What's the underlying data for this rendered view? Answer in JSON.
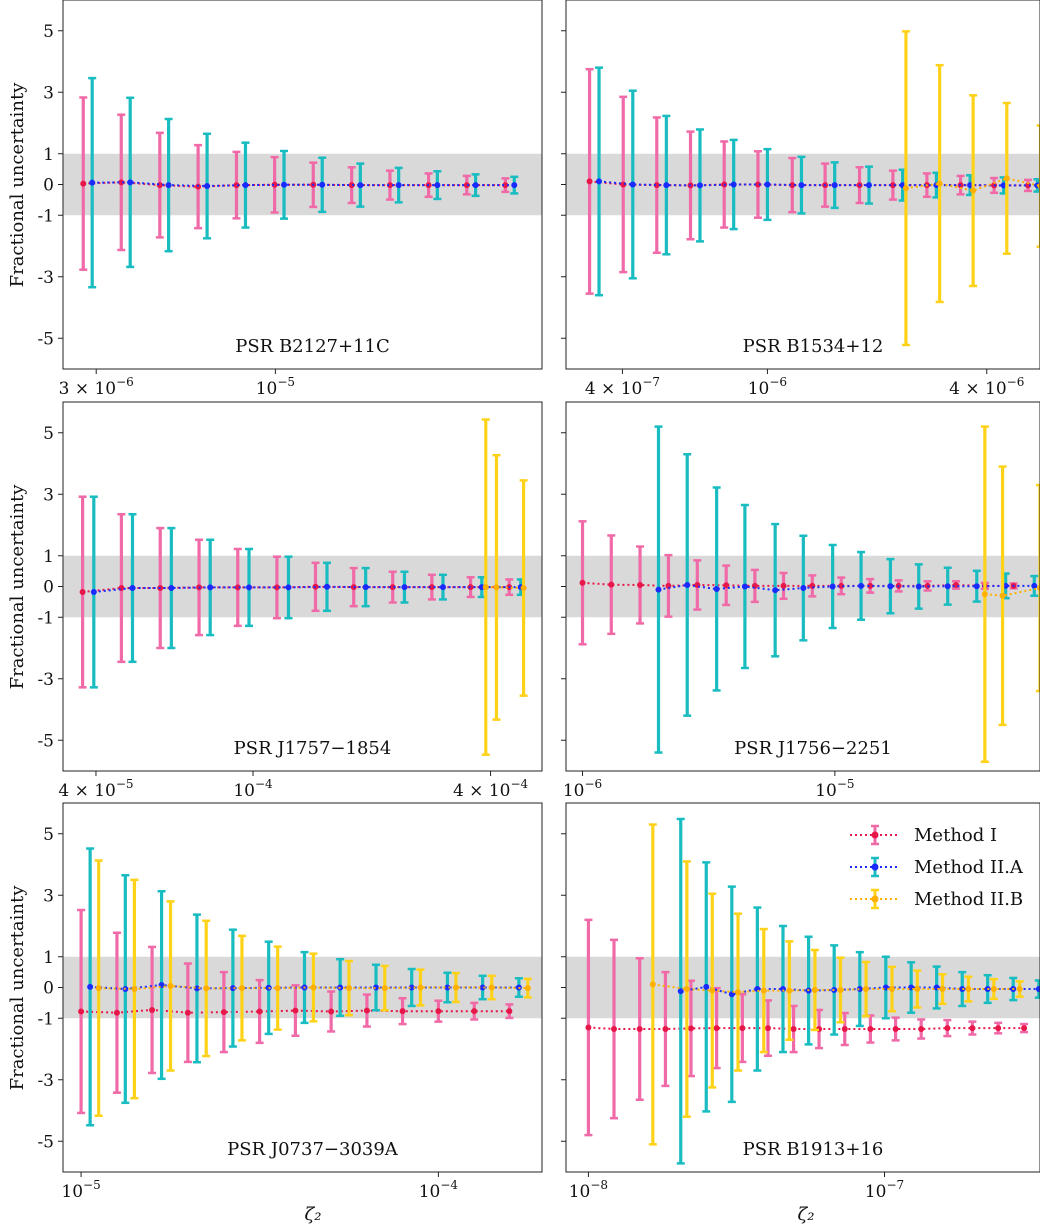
{
  "figure": {
    "ylabel": "Fractional uncertainty",
    "xlabel": "ζ₂",
    "band": [
      -1,
      1
    ],
    "ylim": [
      -6,
      6
    ],
    "y_ticks": [
      5,
      3,
      1,
      0,
      -1,
      -3,
      -5
    ],
    "y_tick_labels": [
      "5",
      "3",
      "1",
      "0",
      "-1",
      "-3",
      "-5"
    ],
    "colors": {
      "method_I_marker": "#e8174a",
      "method_I_bar": "#f06aa8",
      "method_I_line": "#e8174a",
      "method_IIA_marker": "#1a2bff",
      "method_IIA_bar": "#19bcc0",
      "method_IIA_line": "#1a2bff",
      "method_IIB_marker": "#ffb000",
      "method_IIB_bar": "#ffd21a",
      "method_IIB_line": "#ffb000",
      "band": "#d9d9d9"
    }
  },
  "legend": {
    "placement": "top-right of bottom-right panel",
    "entries": [
      "Method I",
      "Method II.A",
      "Method II.B"
    ]
  },
  "chart_data": [
    {
      "type": "scatter",
      "title": "PSR B2127+11C",
      "xscale": "log",
      "xlim": [
        2.4e-06,
        6e-05
      ],
      "x_ticks": [
        {
          "value": 3e-06,
          "mant": "3 × 10",
          "exp": "−6"
        },
        {
          "value": 1e-05,
          "mant": "10",
          "exp": "−5"
        }
      ],
      "series": [
        {
          "name": "Method I",
          "x": [
            2.75e-06,
            3.55e-06,
            4.6e-06,
            5.95e-06,
            7.7e-06,
            9.95e-06,
            1.29e-05,
            1.67e-05,
            2.16e-05,
            2.8e-05,
            3.62e-05,
            4.69e-05
          ],
          "y": [
            0.03,
            0.07,
            -0.02,
            -0.07,
            -0.02,
            -0.01,
            -0.01,
            -0.02,
            -0.02,
            -0.02,
            -0.02,
            -0.02
          ],
          "err": [
            2.8,
            2.2,
            1.7,
            1.35,
            1.08,
            0.9,
            0.72,
            0.58,
            0.47,
            0.38,
            0.3,
            0.22
          ]
        },
        {
          "name": "Method II.A",
          "x": [
            2.92e-06,
            3.77e-06,
            4.88e-06,
            6.32e-06,
            8.18e-06,
            1.06e-05,
            1.37e-05,
            1.77e-05,
            2.29e-05,
            2.97e-05,
            3.84e-05,
            4.98e-05
          ],
          "y": [
            0.06,
            0.07,
            -0.02,
            -0.05,
            -0.02,
            -0.01,
            -0.01,
            -0.02,
            -0.02,
            -0.02,
            -0.02,
            -0.02
          ],
          "err": [
            3.4,
            2.75,
            2.15,
            1.7,
            1.38,
            1.1,
            0.88,
            0.7,
            0.56,
            0.45,
            0.35,
            0.27
          ]
        }
      ]
    },
    {
      "type": "scatter",
      "title": "PSR B1534+12",
      "xscale": "log",
      "xlim": [
        2.8e-07,
        5.6e-06
      ],
      "x_ticks": [
        {
          "value": 4e-07,
          "mant": "4 × 10",
          "exp": "−7"
        },
        {
          "value": 1e-06,
          "mant": "10",
          "exp": "−6"
        },
        {
          "value": 4e-06,
          "mant": "4 × 10",
          "exp": "−6"
        }
      ],
      "series": [
        {
          "name": "Method I",
          "x": [
            3.25e-07,
            4.02e-07,
            4.97e-07,
            6.15e-07,
            7.61e-07,
            9.42e-07,
            1.17e-06,
            1.44e-06,
            1.79e-06,
            2.21e-06,
            2.74e-06,
            3.39e-06,
            4.19e-06,
            5.19e-06
          ],
          "y": [
            0.1,
            0.0,
            -0.02,
            -0.03,
            0.0,
            0.0,
            -0.02,
            -0.02,
            -0.02,
            -0.02,
            -0.02,
            -0.02,
            -0.03,
            -0.03
          ],
          "err": [
            3.65,
            2.85,
            2.2,
            1.75,
            1.4,
            1.08,
            0.88,
            0.7,
            0.58,
            0.47,
            0.38,
            0.3,
            0.24,
            0.18
          ]
        },
        {
          "name": "Method II.A",
          "x": [
            3.45e-07,
            4.27e-07,
            5.28e-07,
            6.53e-07,
            8.08e-07,
            1e-06,
            1.24e-06,
            1.53e-06,
            1.9e-06,
            2.35e-06,
            2.91e-06,
            3.6e-06,
            4.45e-06,
            5.51e-06
          ],
          "y": [
            0.1,
            0.0,
            -0.02,
            -0.03,
            0.0,
            0.0,
            -0.02,
            -0.02,
            -0.02,
            -0.02,
            -0.02,
            -0.02,
            -0.03,
            -0.03
          ],
          "err": [
            3.7,
            3.05,
            2.25,
            1.82,
            1.45,
            1.15,
            0.92,
            0.74,
            0.6,
            0.5,
            0.4,
            0.32,
            0.26,
            0.2
          ]
        },
        {
          "name": "Method II.B",
          "x": [
            2.4e-06,
            2.97e-06,
            3.67e-06,
            4.54e-06,
            5.62e-06
          ],
          "y": [
            -0.12,
            0.03,
            -0.2,
            0.2,
            -0.05
          ],
          "err": [
            5.1,
            3.85,
            3.1,
            2.45,
            1.97
          ]
        }
      ]
    },
    {
      "type": "scatter",
      "title": "PSR J1757−1854",
      "xscale": "log",
      "xlim": [
        3.3e-05,
        0.00054
      ],
      "x_ticks": [
        {
          "value": 4e-05,
          "mant": "4 × 10",
          "exp": "−5"
        },
        {
          "value": 0.0001,
          "mant": "10",
          "exp": "−4"
        },
        {
          "value": 0.0004,
          "mant": "4 × 10",
          "exp": "−4"
        }
      ],
      "series": [
        {
          "name": "Method I",
          "x": [
            3.7e-05,
            4.64e-05,
            5.82e-05,
            7.3e-05,
            9.15e-05,
            0.000115,
            0.000144,
            0.00018,
            0.000226,
            0.000284,
            0.000356,
            0.000446
          ],
          "y": [
            -0.18,
            -0.05,
            -0.05,
            -0.03,
            -0.03,
            -0.03,
            -0.01,
            -0.02,
            -0.02,
            -0.02,
            -0.02,
            -0.02
          ],
          "err": [
            3.1,
            2.4,
            1.95,
            1.55,
            1.25,
            1.0,
            0.78,
            0.62,
            0.5,
            0.4,
            0.32,
            0.25
          ]
        },
        {
          "name": "Method II.A",
          "x": [
            3.95e-05,
            4.95e-05,
            6.21e-05,
            7.79e-05,
            9.77e-05,
            0.000123,
            0.000154,
            0.000193,
            0.000242,
            0.000303,
            0.00038,
            0.000477
          ],
          "y": [
            -0.18,
            -0.05,
            -0.05,
            -0.03,
            -0.03,
            -0.03,
            -0.01,
            -0.02,
            -0.02,
            -0.02,
            -0.02,
            -0.02
          ],
          "err": [
            3.1,
            2.4,
            1.95,
            1.55,
            1.25,
            1.0,
            0.78,
            0.62,
            0.5,
            0.4,
            0.32,
            0.25
          ]
        },
        {
          "name": "Method II.B",
          "x": [
            0.000389,
            0.000414,
            0.000485
          ],
          "y": [
            -0.02,
            -0.03,
            -0.05
          ],
          "err": [
            5.45,
            4.3,
            3.5
          ]
        }
      ]
    },
    {
      "type": "scatter",
      "title": "PSR J1756−2251",
      "xscale": "log",
      "xlim": [
        8.6e-07,
        6.5e-05
      ],
      "x_ticks": [
        {
          "value": 1e-06,
          "mant": "10",
          "exp": "−6"
        },
        {
          "value": 1e-05,
          "mant": "10",
          "exp": "−5"
        }
      ],
      "series": [
        {
          "name": "Method I",
          "x": [
            1e-06,
            1.3e-06,
            1.69e-06,
            2.19e-06,
            2.85e-06,
            3.71e-06,
            4.82e-06,
            6.26e-06,
            8.14e-06,
            1.06e-05,
            1.38e-05,
            1.79e-05,
            2.33e-05,
            3.02e-05,
            3.93e-05,
            5.11e-05
          ],
          "y": [
            0.12,
            0.06,
            0.05,
            0.02,
            0.05,
            0.04,
            0.02,
            0.02,
            0.02,
            0.02,
            0.02,
            0.02,
            0.02,
            0.05,
            0.02,
            0.02
          ],
          "err": [
            2.0,
            1.6,
            1.25,
            1.0,
            0.8,
            0.64,
            0.52,
            0.42,
            0.34,
            0.27,
            0.22,
            0.18,
            0.15,
            0.12,
            0.1,
            0.08
          ]
        },
        {
          "name": "Method II.A",
          "x": [
            2e-06,
            2.6e-06,
            3.4e-06,
            4.4e-06,
            5.8e-06,
            7.5e-06,
            9.8e-06,
            1.27e-05,
            1.66e-05,
            2.15e-05,
            2.8e-05,
            3.65e-05,
            4.75e-05,
            6.17e-05
          ],
          "y": [
            -0.1,
            0.05,
            -0.08,
            0.0,
            -0.12,
            -0.05,
            0.0,
            0.02,
            0.01,
            0.0,
            0.01,
            0.01,
            0.02,
            0.02
          ],
          "err": [
            5.3,
            4.25,
            3.3,
            2.65,
            2.15,
            1.7,
            1.35,
            1.1,
            0.88,
            0.72,
            0.6,
            0.5,
            0.4,
            0.32
          ]
        },
        {
          "name": "Method II.B",
          "x": [
            3.93e-05,
            4.62e-05,
            6.5e-05
          ],
          "y": [
            -0.25,
            -0.3,
            -0.05
          ],
          "err": [
            5.45,
            4.2,
            3.35
          ]
        }
      ]
    },
    {
      "type": "scatter",
      "title": "PSR J0737−3039A",
      "xscale": "log",
      "xlim": [
        8.9e-06,
        0.000195
      ],
      "x_ticks": [
        {
          "value": 1e-05,
          "mant": "10",
          "exp": "−5"
        },
        {
          "value": 0.0001,
          "mant": "10",
          "exp": "−4"
        }
      ],
      "series": [
        {
          "name": "Method I",
          "x": [
            1e-05,
            1.26e-05,
            1.58e-05,
            1.99e-05,
            2.51e-05,
            3.16e-05,
            3.98e-05,
            5.01e-05,
            6.31e-05,
            7.94e-05,
            0.0001,
            0.000126,
            0.000158
          ],
          "y": [
            -0.78,
            -0.82,
            -0.73,
            -0.82,
            -0.8,
            -0.78,
            -0.75,
            -0.78,
            -0.75,
            -0.77,
            -0.77,
            -0.77,
            -0.77
          ],
          "err": [
            3.3,
            2.6,
            2.05,
            1.6,
            1.3,
            1.02,
            0.82,
            0.65,
            0.52,
            0.42,
            0.34,
            0.27,
            0.22
          ]
        },
        {
          "name": "Method II.A",
          "x": [
            1.06e-05,
            1.33e-05,
            1.68e-05,
            2.11e-05,
            2.66e-05,
            3.35e-05,
            4.22e-05,
            5.31e-05,
            6.69e-05,
            8.42e-05,
            0.000106,
            0.000133,
            0.000168
          ],
          "y": [
            0.02,
            -0.05,
            0.08,
            -0.03,
            -0.02,
            -0.01,
            0.0,
            0.0,
            0.0,
            0.0,
            0.0,
            0.0,
            0.0
          ],
          "err": [
            4.5,
            3.7,
            3.05,
            2.4,
            1.9,
            1.5,
            1.15,
            0.92,
            0.74,
            0.6,
            0.48,
            0.38,
            0.3
          ]
        },
        {
          "name": "Method II.B",
          "x": [
            1.12e-05,
            1.41e-05,
            1.78e-05,
            2.24e-05,
            2.82e-05,
            3.55e-05,
            4.47e-05,
            5.62e-05,
            7.08e-05,
            8.91e-05,
            0.000112,
            0.000141,
            0.000178
          ],
          "y": [
            -0.02,
            -0.05,
            0.05,
            -0.03,
            -0.02,
            -0.02,
            0.0,
            -0.02,
            -0.02,
            0.0,
            0.0,
            0.0,
            -0.02
          ],
          "err": [
            4.15,
            3.55,
            2.75,
            2.2,
            1.7,
            1.35,
            1.1,
            0.88,
            0.72,
            0.58,
            0.47,
            0.38,
            0.3
          ]
        }
      ]
    },
    {
      "type": "scatter",
      "title": "PSR B1913+16",
      "xscale": "log",
      "xlim": [
        8.4e-09,
        3.35e-07
      ],
      "x_ticks": [
        {
          "value": 1e-08,
          "mant": "10",
          "exp": "−8"
        },
        {
          "value": 1e-07,
          "mant": "10",
          "exp": "−7"
        }
      ],
      "series": [
        {
          "name": "Method I",
          "x": [
            1e-08,
            1.22e-08,
            1.49e-08,
            1.82e-08,
            2.22e-08,
            2.71e-08,
            3.31e-08,
            4.04e-08,
            4.93e-08,
            6.01e-08,
            7.34e-08,
            8.96e-08,
            1.09e-07,
            1.33e-07,
            1.63e-07,
            1.98e-07,
            2.42e-07,
            2.96e-07
          ],
          "y": [
            -1.3,
            -1.35,
            -1.35,
            -1.35,
            -1.33,
            -1.32,
            -1.32,
            -1.32,
            -1.35,
            -1.35,
            -1.35,
            -1.35,
            -1.35,
            -1.35,
            -1.32,
            -1.32,
            -1.32,
            -1.32
          ],
          "err": [
            3.5,
            2.9,
            2.3,
            1.85,
            1.55,
            1.3,
            1.1,
            0.9,
            0.75,
            0.62,
            0.52,
            0.44,
            0.37,
            0.31,
            0.26,
            0.21,
            0.17,
            0.13
          ]
        },
        {
          "name": "Method II.A",
          "x": [
            2.05e-08,
            2.5e-08,
            3.05e-08,
            3.72e-08,
            4.54e-08,
            5.54e-08,
            6.76e-08,
            8.25e-08,
            1.01e-07,
            1.23e-07,
            1.5e-07,
            1.83e-07,
            2.23e-07,
            2.72e-07,
            3.32e-07
          ],
          "y": [
            -0.12,
            0.02,
            -0.22,
            -0.05,
            -0.05,
            -0.1,
            -0.08,
            -0.05,
            0.0,
            0.0,
            0.0,
            -0.05,
            -0.05,
            -0.05,
            -0.05
          ],
          "err": [
            5.6,
            4.05,
            3.5,
            2.65,
            2.05,
            1.75,
            1.45,
            1.2,
            1.0,
            0.82,
            0.68,
            0.55,
            0.45,
            0.36,
            0.28
          ]
        },
        {
          "name": "Method II.B",
          "x": [
            1.65e-08,
            2.15e-08,
            2.62e-08,
            3.2e-08,
            3.91e-08,
            4.77e-08,
            5.82e-08,
            7.1e-08,
            8.66e-08,
            1.06e-07,
            1.29e-07,
            1.57e-07,
            1.92e-07,
            2.34e-07,
            2.86e-07
          ],
          "y": [
            0.1,
            -0.05,
            -0.1,
            -0.15,
            -0.1,
            -0.1,
            -0.08,
            -0.08,
            -0.05,
            -0.05,
            -0.05,
            -0.05,
            -0.05,
            -0.05,
            -0.05
          ],
          "err": [
            5.2,
            4.15,
            3.15,
            2.55,
            2.0,
            1.6,
            1.3,
            1.05,
            0.88,
            0.72,
            0.6,
            0.48,
            0.4,
            0.32,
            0.25
          ]
        }
      ]
    }
  ]
}
